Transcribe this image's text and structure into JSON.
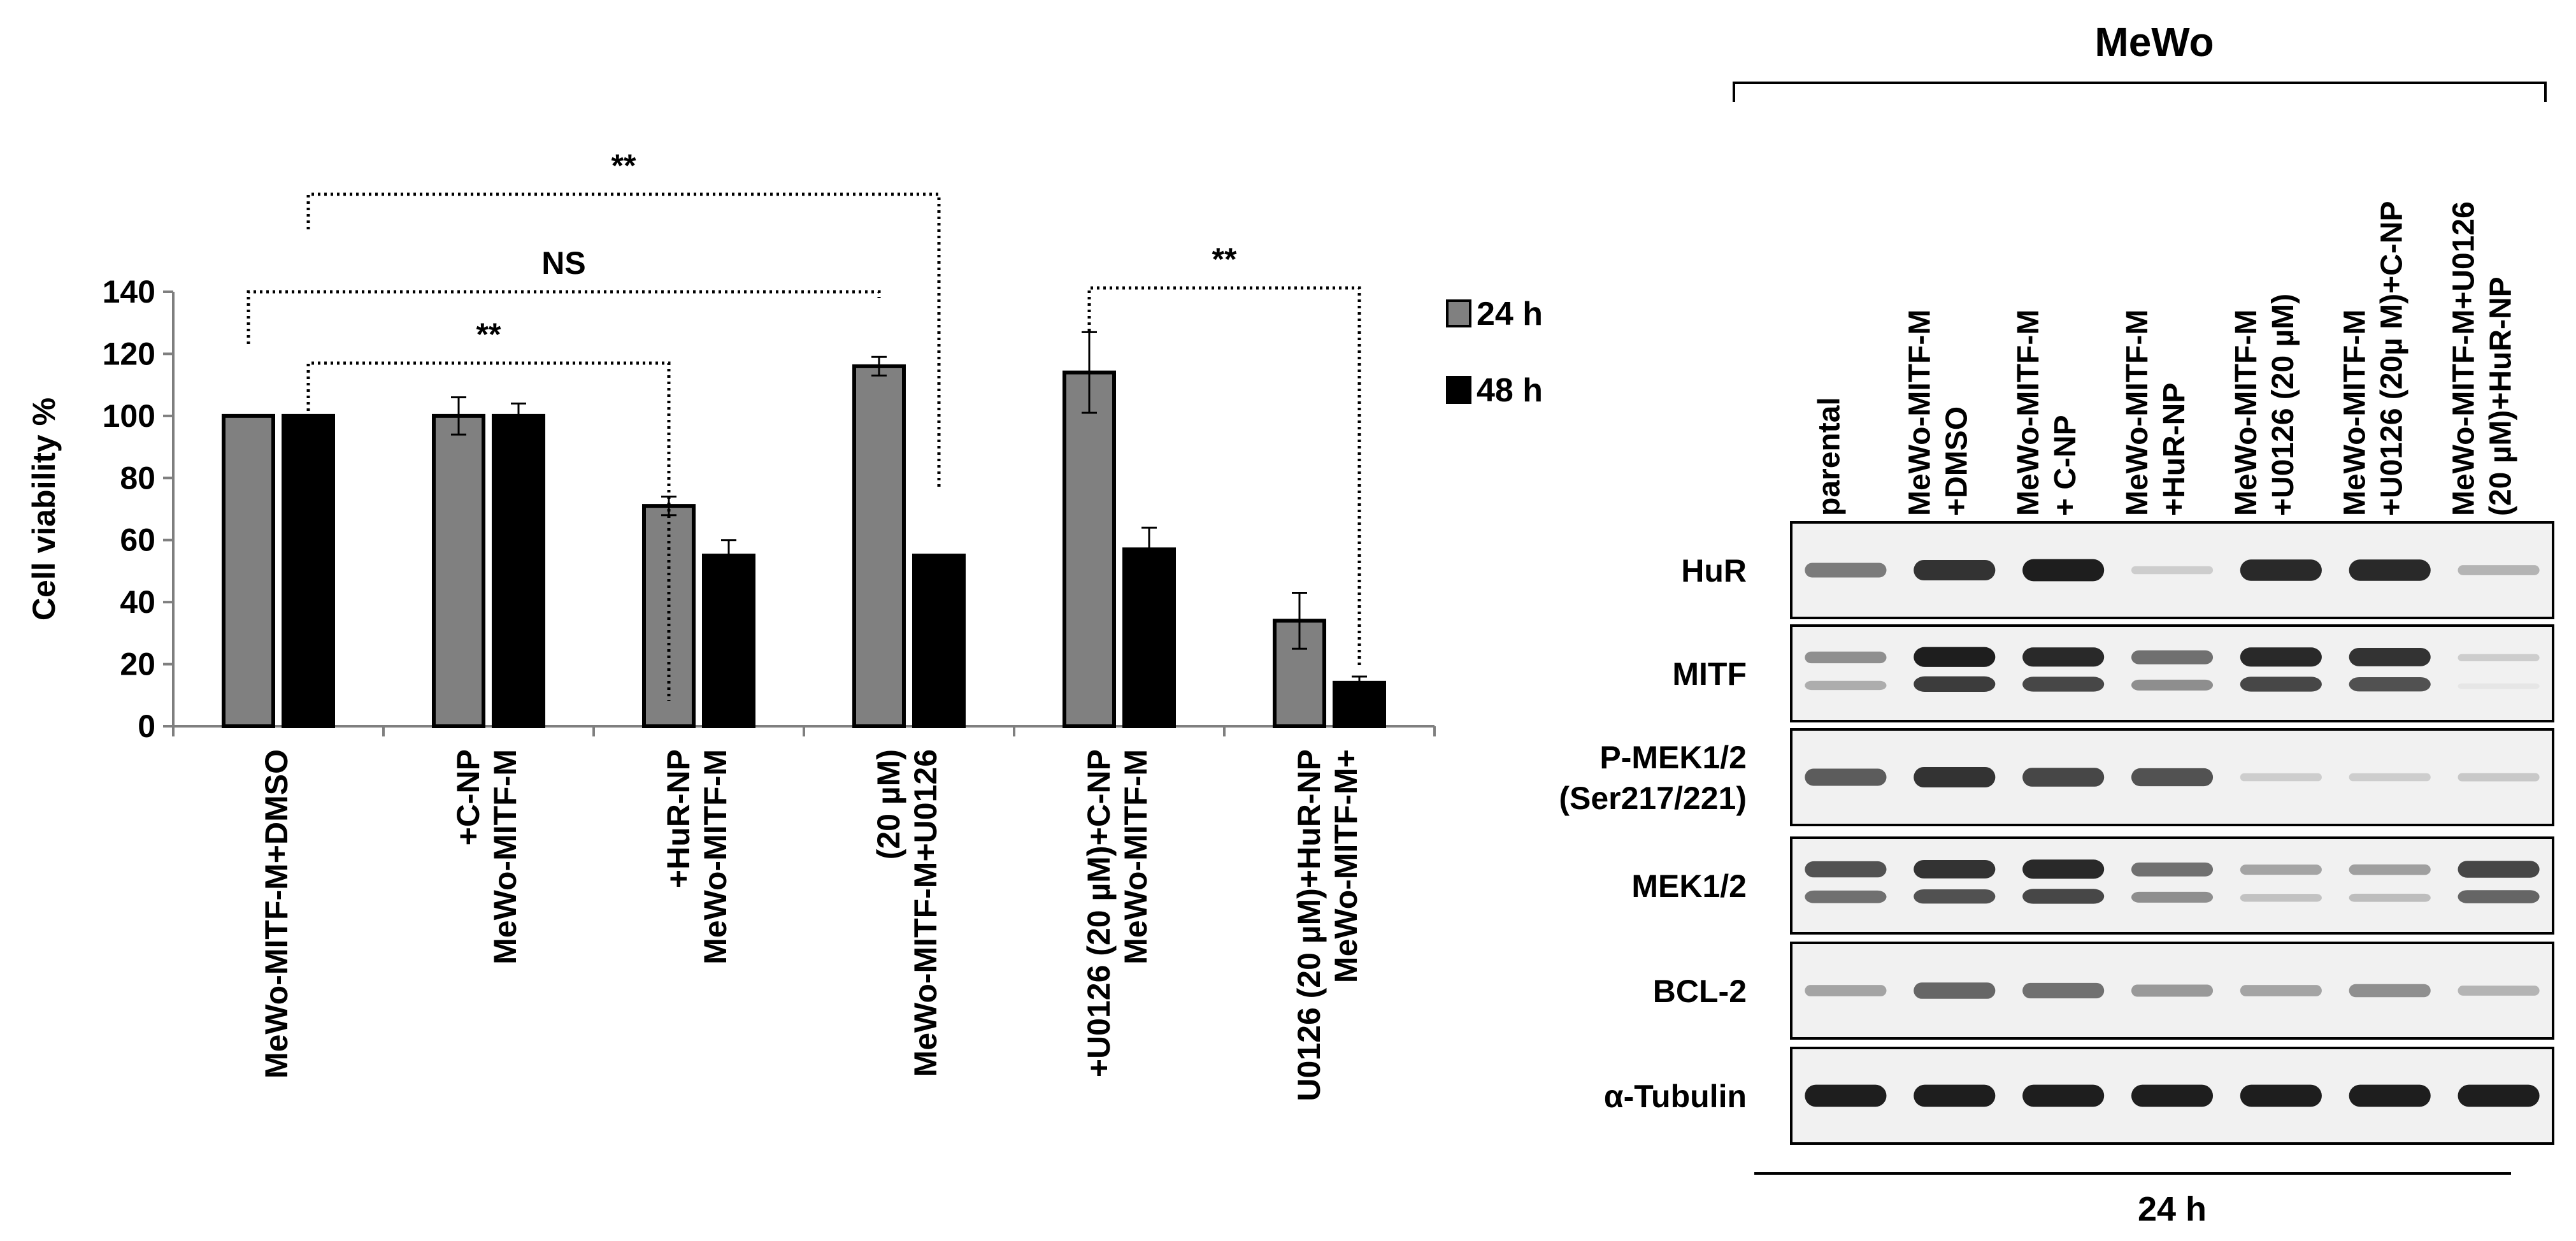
{
  "chart_data": [
    {
      "type": "bar",
      "ylabel": "Cell viability %",
      "ylim": [
        0,
        140
      ],
      "yticks": [
        0,
        20,
        40,
        60,
        80,
        100,
        120,
        140
      ],
      "categories": [
        [
          "MeWo-MITF-M+DMSO"
        ],
        [
          "MeWo-MITF-M",
          "+C-NP"
        ],
        [
          "MeWo-MITF-M",
          "+HuR-NP"
        ],
        [
          "MeWo-MITF-M+U0126",
          "(20 µM)"
        ],
        [
          "MeWo-MITF-M",
          "+U0126 (20 µM)+C-NP"
        ],
        [
          "MeWo-MITF-M+",
          "U0126 (20 µM)+HuR-NP"
        ]
      ],
      "series": [
        {
          "name": "24 h",
          "color": "#808080",
          "values": [
            100,
            100,
            71,
            116,
            114,
            34
          ],
          "errors": [
            0,
            6,
            3,
            3,
            13,
            9
          ]
        },
        {
          "name": "48 h",
          "color": "#000000",
          "values": [
            100,
            100,
            55,
            55,
            57,
            14
          ],
          "errors": [
            0,
            4,
            5,
            0,
            7,
            2
          ]
        }
      ],
      "legend_position": "right",
      "grid": false,
      "significance": [
        {
          "label": "**",
          "from": "MeWo-MITF-M+DMSO 48 h",
          "to": "MeWo-MITF-M+U0126 (20 µM) 48 h"
        },
        {
          "label": "NS",
          "from": "MeWo-MITF-M+DMSO 24 h",
          "to": "MeWo-MITF-M+U0126 (20 µM) 24 h"
        },
        {
          "label": "**",
          "from": "MeWo-MITF-M+DMSO 48 h",
          "to": "MeWo-MITF-M +HuR-NP 24 h"
        },
        {
          "label": "**",
          "from": "MeWo-MITF-M +U0126 (20 µM)+C-NP 24 h",
          "to": "MeWo-MITF-M+ U0126 (20 µM)+HuR-NP 48 h"
        }
      ]
    },
    {
      "type": "western-blot",
      "title": "MeWo",
      "footer": "24 h",
      "lanes": [
        [
          "parental"
        ],
        [
          "MeWo-MITF-M",
          "+DMSO"
        ],
        [
          "MeWo-MITF-M",
          "+ C-NP"
        ],
        [
          "MeWo-MITF-M",
          "+HuR-NP"
        ],
        [
          "MeWo-MITF-M",
          "+U0126 (20 µM)"
        ],
        [
          "MeWo-MITF-M",
          "+U0126 (20µ M)+C-NP"
        ],
        [
          "MeWo-MITF-M+U0126",
          "(20 µM)+HuR-NP"
        ]
      ],
      "rows": [
        {
          "label": [
            "HuR"
          ],
          "intensity": [
            0.5,
            0.85,
            0.95,
            0.1,
            0.9,
            0.9,
            0.22
          ]
        },
        {
          "label": [
            "MITF"
          ],
          "intensity": [
            0.4,
            0.95,
            0.9,
            0.55,
            0.9,
            0.85,
            0.1
          ]
        },
        {
          "label": [
            "P-MEK1/2",
            "(Ser217/221)"
          ],
          "intensity": [
            0.65,
            0.85,
            0.75,
            0.7,
            0.1,
            0.1,
            0.12
          ]
        },
        {
          "label": [
            "MEK1/2"
          ],
          "intensity": [
            0.7,
            0.85,
            0.9,
            0.55,
            0.3,
            0.32,
            0.75
          ]
        },
        {
          "label": [
            "BCL-2"
          ],
          "intensity": [
            0.3,
            0.6,
            0.55,
            0.35,
            0.3,
            0.4,
            0.22
          ]
        },
        {
          "label": [
            "α-Tubulin"
          ],
          "intensity": [
            0.95,
            0.95,
            0.95,
            0.95,
            0.95,
            0.95,
            0.95
          ]
        }
      ]
    }
  ]
}
